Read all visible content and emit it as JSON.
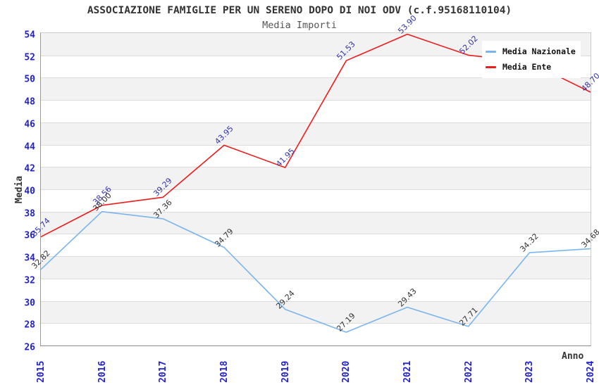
{
  "chart": {
    "title": "ASSOCIAZIONE FAMIGLIE PER UN SERENO DOPO DI NOI ODV (c.f.95168110104)",
    "subtitle": "Media Importi",
    "y_axis_title": "Media",
    "x_axis_title": "Anno",
    "colors": {
      "title_text": "#333333",
      "subtitle_text": "#555555",
      "tick_text": "#2222cc",
      "gridline": "#dcdcdc",
      "plot_border": "#aaaaaa",
      "legend_background": "#ffffff"
    }
  },
  "chart_data": {
    "type": "line",
    "x": [
      2015,
      2016,
      2017,
      2018,
      2019,
      2020,
      2021,
      2022,
      2023,
      2024
    ],
    "series": [
      {
        "name": "Media Nazionale",
        "color": "#7cb5ec",
        "label_color": "#333333",
        "values": [
          32.82,
          38.0,
          37.36,
          34.79,
          29.24,
          27.19,
          29.43,
          27.71,
          34.32,
          34.68
        ],
        "labels": [
          "32.82",
          "38.00",
          "37.36",
          "34.79",
          "29.24",
          "27.19",
          "29.43",
          "27.71",
          "34.32",
          "34.68"
        ]
      },
      {
        "name": "Media Ente",
        "color": "#ee1c1c",
        "label_color": "#3333aa",
        "values": [
          35.74,
          38.56,
          39.29,
          43.95,
          41.95,
          51.53,
          53.9,
          52.02,
          51.4,
          48.7
        ],
        "labels": [
          "35.74",
          "38.56",
          "39.29",
          "43.95",
          "41.95",
          "51.53",
          "53.90",
          "52.02",
          "",
          "48.70"
        ]
      }
    ],
    "ylim": [
      26,
      54
    ],
    "ytick_step": 2,
    "grid": true,
    "band_colors": [
      "#f2f2f2",
      "#ffffff"
    ],
    "legend_position": "top-right",
    "note_hidden_label": "2023 Media Ente label hidden behind legend"
  }
}
